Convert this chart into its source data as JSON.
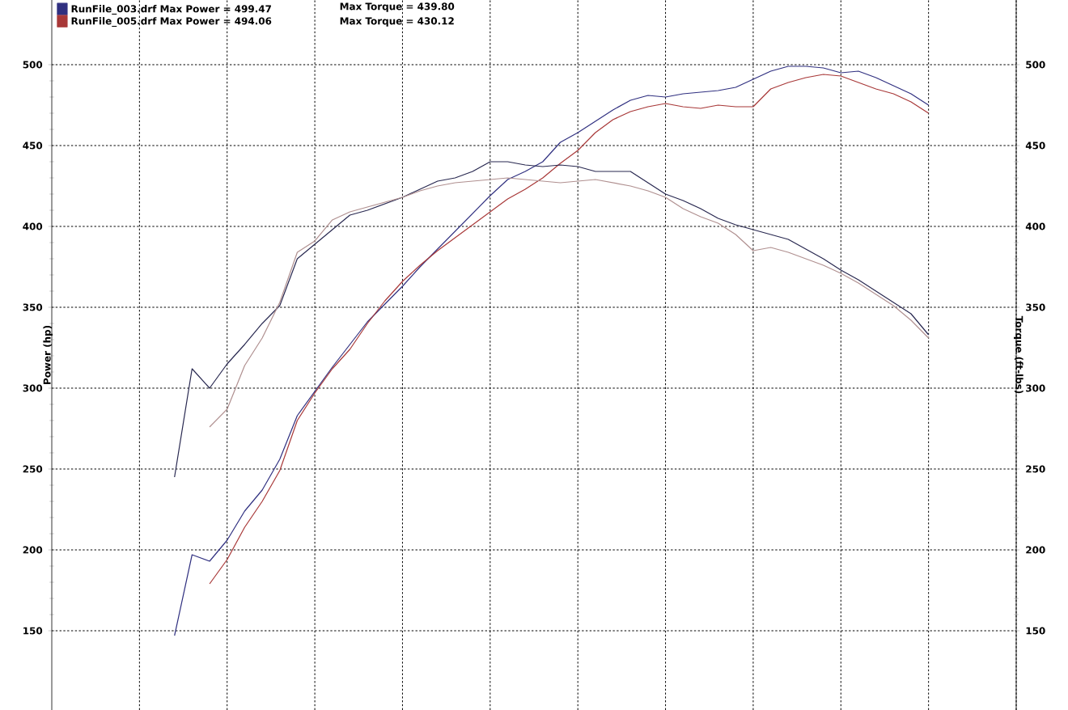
{
  "chart_data": {
    "type": "line",
    "ylabel": "Power (hp)",
    "y2label": "Torque (ft-lbs)",
    "categories": [
      null,
      null,
      null,
      null,
      null,
      null,
      null,
      null,
      null,
      null,
      null,
      null,
      null,
      null,
      null,
      null,
      null,
      null,
      null,
      null,
      null,
      null,
      null,
      null,
      null,
      null,
      null,
      null,
      null,
      null,
      null,
      null,
      null,
      null,
      null,
      null,
      null,
      null,
      null,
      null,
      null,
      null,
      null,
      null,
      null,
      null,
      null,
      null,
      null,
      null,
      null,
      null,
      null,
      null,
      null,
      null
    ],
    "ylim": [
      101,
      540
    ],
    "yticks": [
      150,
      200,
      250,
      300,
      350,
      400,
      450,
      500
    ],
    "y2lim": [
      101,
      540
    ],
    "y2ticks": [
      150,
      200,
      250,
      300,
      350,
      400,
      450,
      500
    ],
    "grid": true,
    "legend": "top left",
    "marker": "none",
    "line_style": "solid",
    "annotations": [
      "Max Torque = 439.80",
      "Max Torque = 430.12"
    ],
    "series": [
      {
        "name": "RunFile_003.drf Max Power = 499.47",
        "color": "#303080",
        "values": [
          null,
          null,
          null,
          null,
          null,
          null,
          null,
          147,
          197,
          193,
          206,
          224,
          237,
          256,
          283,
          298,
          313,
          327,
          341,
          352,
          363,
          375,
          386,
          397,
          408,
          419,
          429,
          434,
          440,
          452,
          458,
          465,
          472,
          478,
          481,
          480,
          482,
          483,
          484,
          486,
          491,
          496,
          499,
          499,
          498,
          495,
          496,
          492,
          487,
          482,
          475,
          null,
          null,
          null,
          null,
          null
        ]
      },
      {
        "name": "RunFile_005.drf Max Power = 494.06",
        "color": "#a83838",
        "values": [
          null,
          null,
          null,
          null,
          null,
          null,
          null,
          null,
          null,
          179,
          194,
          214,
          230,
          249,
          280,
          297,
          312,
          324,
          340,
          354,
          366,
          376,
          385,
          393,
          401,
          409,
          417,
          423,
          430,
          439,
          447,
          458,
          466,
          471,
          474,
          476,
          474,
          473,
          475,
          474,
          474,
          485,
          489,
          492,
          494,
          493,
          489,
          485,
          482,
          477,
          470,
          null,
          null,
          null,
          null,
          null
        ]
      },
      {
        "axis": "y2",
        "color": "#282850",
        "values": [
          null,
          null,
          null,
          null,
          null,
          null,
          null,
          245,
          312,
          300,
          315,
          327,
          340,
          351,
          380,
          389,
          398,
          407,
          410,
          414,
          418,
          423,
          428,
          430,
          434,
          440,
          440,
          438,
          437,
          438,
          437,
          434,
          434,
          434,
          427,
          420,
          416,
          411,
          405,
          401,
          398,
          395,
          392,
          386,
          380,
          373,
          367,
          360,
          353,
          346,
          333,
          null,
          null,
          null,
          null,
          null
        ]
      },
      {
        "axis": "y2",
        "color": "#b09090",
        "values": [
          null,
          null,
          null,
          null,
          null,
          null,
          null,
          null,
          null,
          276,
          287,
          314,
          331,
          353,
          384,
          391,
          404,
          409,
          412,
          415,
          418,
          422,
          425,
          427,
          428,
          429,
          430,
          429,
          428,
          427,
          428,
          429,
          427,
          425,
          422,
          418,
          411,
          406,
          402,
          395,
          385,
          387,
          384,
          380,
          376,
          371,
          365,
          358,
          351,
          342,
          331,
          null,
          null,
          null,
          null,
          null
        ]
      }
    ]
  }
}
